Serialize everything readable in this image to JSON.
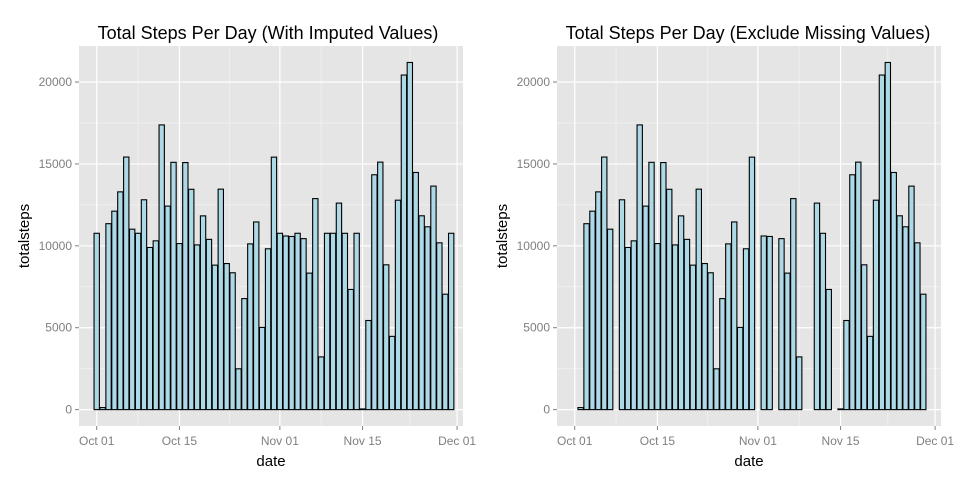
{
  "colors": {
    "panel_bg": "#e5e5e5",
    "grid_major": "#ffffff",
    "grid_minor": "#f2f2f2",
    "bar_fill": "#add8e6",
    "bar_stroke": "#000000",
    "tick_text": "#7f7f7f",
    "tick_mark": "#7f7f7f"
  },
  "chart_data": [
    {
      "type": "bar",
      "title": "Total Steps Per Day (With Imputed Values)",
      "xlabel": "date",
      "ylabel": "totalsteps",
      "x_start": "2012-10-01",
      "x_range": [
        "2012-09-28",
        "2012-12-02"
      ],
      "ylim": [
        -1000,
        22200
      ],
      "grid": true,
      "yticks": [
        0,
        5000,
        10000,
        15000,
        20000
      ],
      "ytick_labels": [
        "0",
        "5000",
        "10000",
        "15000",
        "20000"
      ],
      "xticks": [
        "2012-10-01",
        "2012-10-15",
        "2012-11-01",
        "2012-11-15",
        "2012-12-01"
      ],
      "xtick_labels": [
        "Oct 01",
        "Oct 15",
        "Nov 01",
        "Nov 15",
        "Dec 01"
      ],
      "values": [
        10766,
        126,
        11352,
        12116,
        13294,
        15420,
        11015,
        10766,
        12811,
        9900,
        10304,
        17382,
        12426,
        15098,
        10139,
        15084,
        13452,
        10056,
        11829,
        10395,
        8821,
        13460,
        8918,
        8355,
        2492,
        6778,
        10119,
        11458,
        5018,
        9819,
        15414,
        10766,
        10600,
        10571,
        10766,
        10439,
        8334,
        12883,
        3219,
        10766,
        10766,
        12608,
        10765,
        7336,
        10766,
        41,
        5441,
        14339,
        15110,
        8841,
        4472,
        12787,
        20427,
        21194,
        14478,
        11834,
        11162,
        13646,
        10183,
        7047,
        10766
      ]
    },
    {
      "type": "bar",
      "title": "Total Steps Per Day (Exclude Missing Values)",
      "xlabel": "date",
      "ylabel": "totalsteps",
      "x_start": "2012-10-01",
      "x_range": [
        "2012-09-28",
        "2012-12-02"
      ],
      "ylim": [
        -1000,
        22200
      ],
      "grid": true,
      "yticks": [
        0,
        5000,
        10000,
        15000,
        20000
      ],
      "ytick_labels": [
        "0",
        "5000",
        "10000",
        "15000",
        "20000"
      ],
      "xticks": [
        "2012-10-01",
        "2012-10-15",
        "2012-11-01",
        "2012-11-15",
        "2012-12-01"
      ],
      "xtick_labels": [
        "Oct 01",
        "Oct 15",
        "Nov 01",
        "Nov 15",
        "Dec 01"
      ],
      "values": [
        0,
        126,
        11352,
        12116,
        13294,
        15420,
        11015,
        0,
        12811,
        9900,
        10304,
        17382,
        12426,
        15098,
        10139,
        15084,
        13452,
        10056,
        11829,
        10395,
        8821,
        13460,
        8918,
        8355,
        2492,
        6778,
        10119,
        11458,
        5018,
        9819,
        15414,
        0,
        10600,
        10571,
        0,
        10439,
        8334,
        12883,
        3219,
        0,
        0,
        12608,
        10765,
        7336,
        0,
        41,
        5441,
        14339,
        15110,
        8841,
        4472,
        12787,
        20427,
        21194,
        14478,
        11834,
        11162,
        13646,
        10183,
        7047,
        0
      ]
    }
  ]
}
